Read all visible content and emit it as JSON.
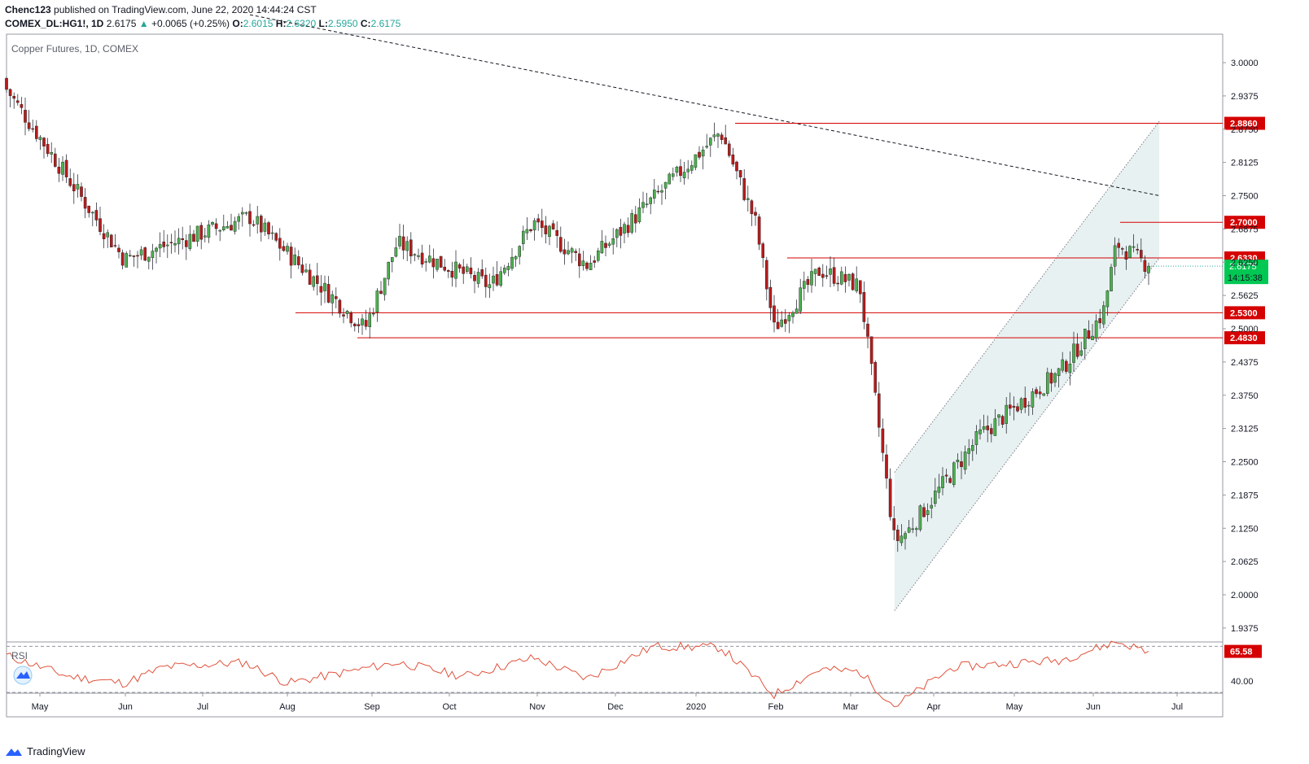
{
  "header": {
    "publisher": "Chenc123",
    "published_text": "published on TradingView.com, June 22, 2020 14:44:24 CST",
    "symbol": "COMEX_DL:HG1!, 1D",
    "last": "2.6175",
    "change_arrow": "▲",
    "change": "+0.0065 (+0.25%)",
    "o_label": "O:",
    "o_value": "2.6015",
    "h_label": "H:",
    "h_value": "2.6320",
    "l_label": "L:",
    "l_value": "2.5950",
    "c_label": "C:",
    "c_value": "2.6175"
  },
  "colors": {
    "up": "#26a69a",
    "candle_up": "#4caf50",
    "down": "#b71c1c",
    "level_line": "#d50000",
    "rsi_line": "#e0533c",
    "channel_fill": "#e6efef",
    "price_tag_bg": "#00c853"
  },
  "chart_data": [
    {
      "type": "candlestick",
      "title": "Copper Futures, 1D, COMEX",
      "x_ticks": [
        "May",
        "Jun",
        "Jul",
        "Aug",
        "Sep",
        "Oct",
        "Nov",
        "Dec",
        "2020",
        "Feb",
        "Mar",
        "Apr",
        "May",
        "Jun",
        "Jul"
      ],
      "y_ticks": [
        "3.0000",
        "2.9375",
        "2.8750",
        "2.8125",
        "2.7500",
        "2.6875",
        "2.6250",
        "2.5625",
        "2.5000",
        "2.4375",
        "2.3750",
        "2.3125",
        "2.2500",
        "2.1875",
        "2.1250",
        "2.0625",
        "2.0000",
        "1.9375"
      ],
      "ylim": [
        1.93,
        3.05
      ],
      "date_range": [
        "2019-04-22",
        "2020-06-22"
      ],
      "key_points": [
        {
          "date": "2019-04-22",
          "close": 2.95
        },
        {
          "date": "2019-06-05",
          "close": 2.63
        },
        {
          "date": "2019-07-22",
          "close": 2.71
        },
        {
          "date": "2019-09-03",
          "close": 2.5
        },
        {
          "date": "2019-09-15",
          "close": 2.66
        },
        {
          "date": "2019-10-20",
          "close": 2.58
        },
        {
          "date": "2019-11-05",
          "close": 2.7
        },
        {
          "date": "2019-11-25",
          "close": 2.62
        },
        {
          "date": "2020-01-14",
          "close": 2.87
        },
        {
          "date": "2020-01-27",
          "close": 2.7
        },
        {
          "date": "2020-02-03",
          "close": 2.5
        },
        {
          "date": "2020-02-20",
          "close": 2.61
        },
        {
          "date": "2020-03-06",
          "close": 2.58
        },
        {
          "date": "2020-03-19",
          "close": 2.1
        },
        {
          "date": "2020-03-24",
          "close": 2.12
        },
        {
          "date": "2020-04-20",
          "close": 2.3
        },
        {
          "date": "2020-05-20",
          "close": 2.42
        },
        {
          "date": "2020-06-05",
          "close": 2.53
        },
        {
          "date": "2020-06-10",
          "close": 2.66
        },
        {
          "date": "2020-06-22",
          "close": 2.6175
        }
      ],
      "last_close": 2.6175,
      "horizontal_levels": [
        {
          "value": 2.886,
          "label": "2.8860"
        },
        {
          "value": 2.7,
          "label": "2.7000"
        },
        {
          "value": 2.633,
          "label": "2.6330"
        },
        {
          "value": 2.53,
          "label": "2.5300"
        },
        {
          "value": 2.483,
          "label": "2.4830"
        }
      ],
      "current_price_label": "2.6175",
      "countdown_label": "14:15:38",
      "trendline": {
        "style": "dashed",
        "from": {
          "date": "2019-07-22",
          "value": 3.09
        },
        "to": {
          "date": "2020-06-26",
          "value": 2.75
        }
      },
      "ascending_channel": {
        "lower": {
          "from": {
            "date": "2020-03-19",
            "value": 1.97
          },
          "to": {
            "date": "2020-06-26",
            "value": 2.633
          }
        },
        "upper": {
          "from": {
            "date": "2020-03-19",
            "value": 2.23
          },
          "to": {
            "date": "2020-06-26",
            "value": 2.89
          }
        }
      }
    },
    {
      "type": "line",
      "title": "RSI",
      "y_ticks": [
        "40.00"
      ],
      "current_value_label": "65.58",
      "key_points": [
        {
          "date": "2019-04-22",
          "value": 62
        },
        {
          "date": "2019-05-15",
          "value": 44
        },
        {
          "date": "2019-06-05",
          "value": 38
        },
        {
          "date": "2019-06-20",
          "value": 52
        },
        {
          "date": "2019-07-20",
          "value": 56
        },
        {
          "date": "2019-08-05",
          "value": 38
        },
        {
          "date": "2019-09-15",
          "value": 56
        },
        {
          "date": "2019-10-10",
          "value": 44
        },
        {
          "date": "2019-11-05",
          "value": 60
        },
        {
          "date": "2019-11-25",
          "value": 42
        },
        {
          "date": "2019-12-20",
          "value": 70
        },
        {
          "date": "2020-01-14",
          "value": 69
        },
        {
          "date": "2020-02-03",
          "value": 28
        },
        {
          "date": "2020-02-20",
          "value": 50
        },
        {
          "date": "2020-03-06",
          "value": 48
        },
        {
          "date": "2020-03-19",
          "value": 18
        },
        {
          "date": "2020-04-10",
          "value": 52
        },
        {
          "date": "2020-05-20",
          "value": 58
        },
        {
          "date": "2020-06-10",
          "value": 74
        },
        {
          "date": "2020-06-22",
          "value": 65.58
        }
      ]
    }
  ],
  "footer": {
    "brand": "TradingView"
  }
}
